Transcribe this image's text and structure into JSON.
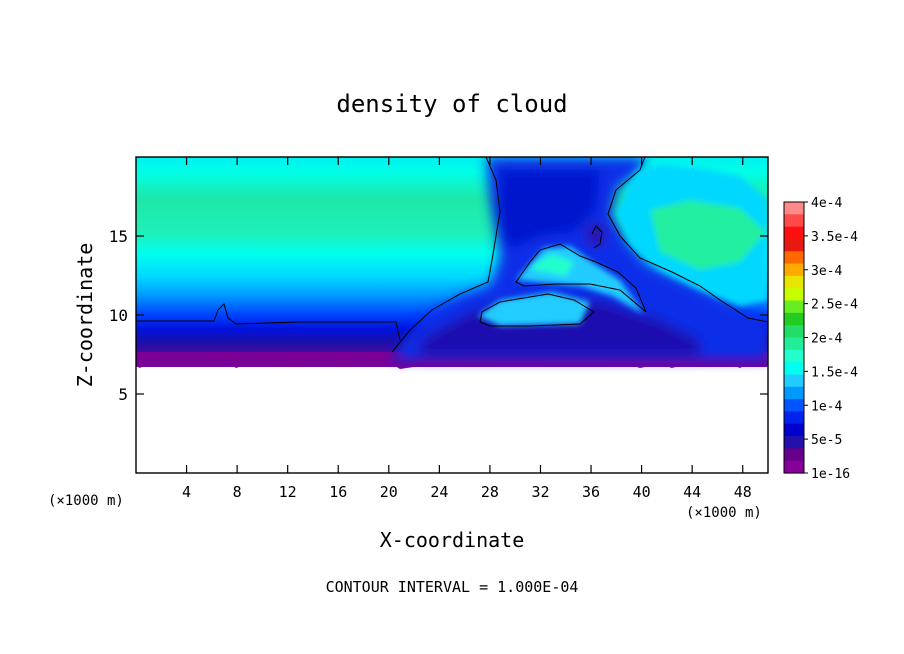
{
  "chart_data": {
    "type": "heatmap",
    "title": "density of cloud",
    "xlabel": "X-coordinate",
    "ylabel": "Z-coordinate",
    "x_unit_left": "(×1000 m)",
    "x_unit_right": "(×1000 m)",
    "xlim": [
      0,
      50
    ],
    "ylim": [
      0,
      20
    ],
    "x_ticks": [
      "4",
      "8",
      "12",
      "16",
      "20",
      "24",
      "28",
      "32",
      "36",
      "40",
      "44",
      "48"
    ],
    "x_tick_values": [
      4,
      8,
      12,
      16,
      20,
      24,
      28,
      32,
      36,
      40,
      44,
      48
    ],
    "y_ticks": [
      "5",
      "10",
      "15"
    ],
    "y_tick_values": [
      5,
      10,
      15
    ],
    "footer": "CONTOUR INTERVAL = 1.000E-04",
    "colorbar": {
      "labels": [
        "4e-4",
        "3.5e-4",
        "3e-4",
        "2.5e-4",
        "2e-4",
        "1.5e-4",
        "1e-4",
        "5e-5",
        "1e-16"
      ],
      "label_values": [
        0.0004,
        0.00035,
        0.0003,
        0.00025,
        0.0002,
        0.00015,
        0.0001,
        5e-05,
        1e-16
      ],
      "colors": [
        "#ff8a8a",
        "#ff4a4a",
        "#ff1010",
        "#e61a10",
        "#ff6a00",
        "#ffaa00",
        "#e6e600",
        "#c8ff00",
        "#66ee22",
        "#22cc22",
        "#22dd66",
        "#22ee99",
        "#22ffcc",
        "#00ffee",
        "#22ccff",
        "#0099ff",
        "#0055ff",
        "#0022ee",
        "#0000cc",
        "#2211aa",
        "#660088",
        "#880099"
      ]
    }
  }
}
